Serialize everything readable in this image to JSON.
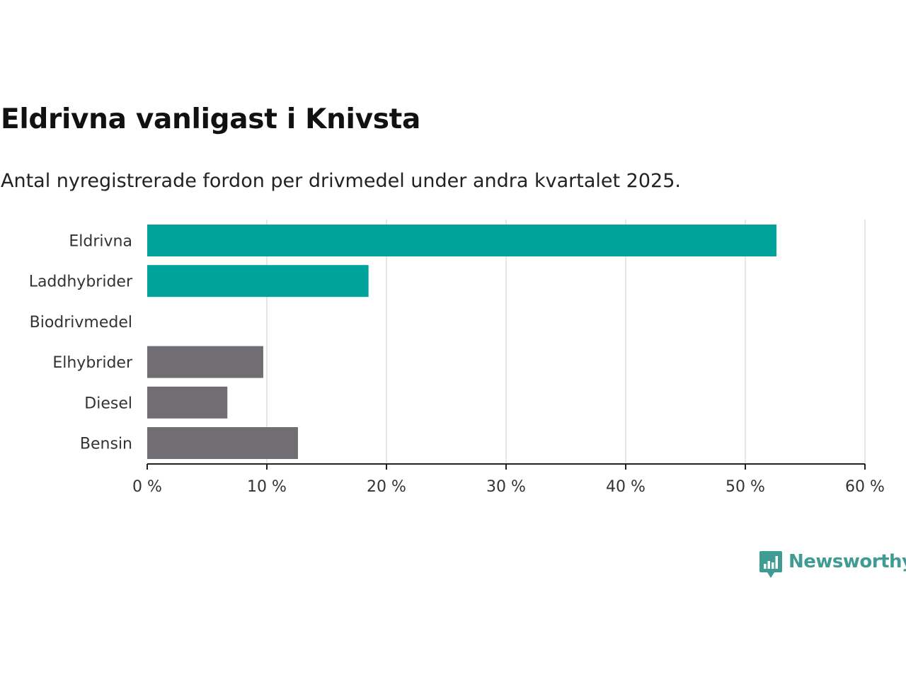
{
  "title": "Eldrivna vanligast i Knivsta",
  "subtitle": "Antal nyregistrerade fordon per drivmedel under andra kvartalet 2025.",
  "brand": {
    "name": "Newsworthy",
    "color": "#3f9c92",
    "icon": "bar-chart-speech-bubble-icon"
  },
  "chart_data": {
    "type": "bar",
    "orientation": "horizontal",
    "categories": [
      "Eldrivna",
      "Laddhybrider",
      "Biodrivmedel",
      "Elhybrider",
      "Diesel",
      "Bensin"
    ],
    "values": [
      52.6,
      18.5,
      0,
      9.7,
      6.7,
      12.6
    ],
    "colors": [
      "#00a39a",
      "#00a39a",
      "#00a39a",
      "#706e73",
      "#706e73",
      "#706e73"
    ],
    "xlim": [
      0,
      60
    ],
    "xticks": [
      0,
      10,
      20,
      30,
      40,
      50,
      60
    ],
    "tick_suffix": " %",
    "grid": true
  }
}
